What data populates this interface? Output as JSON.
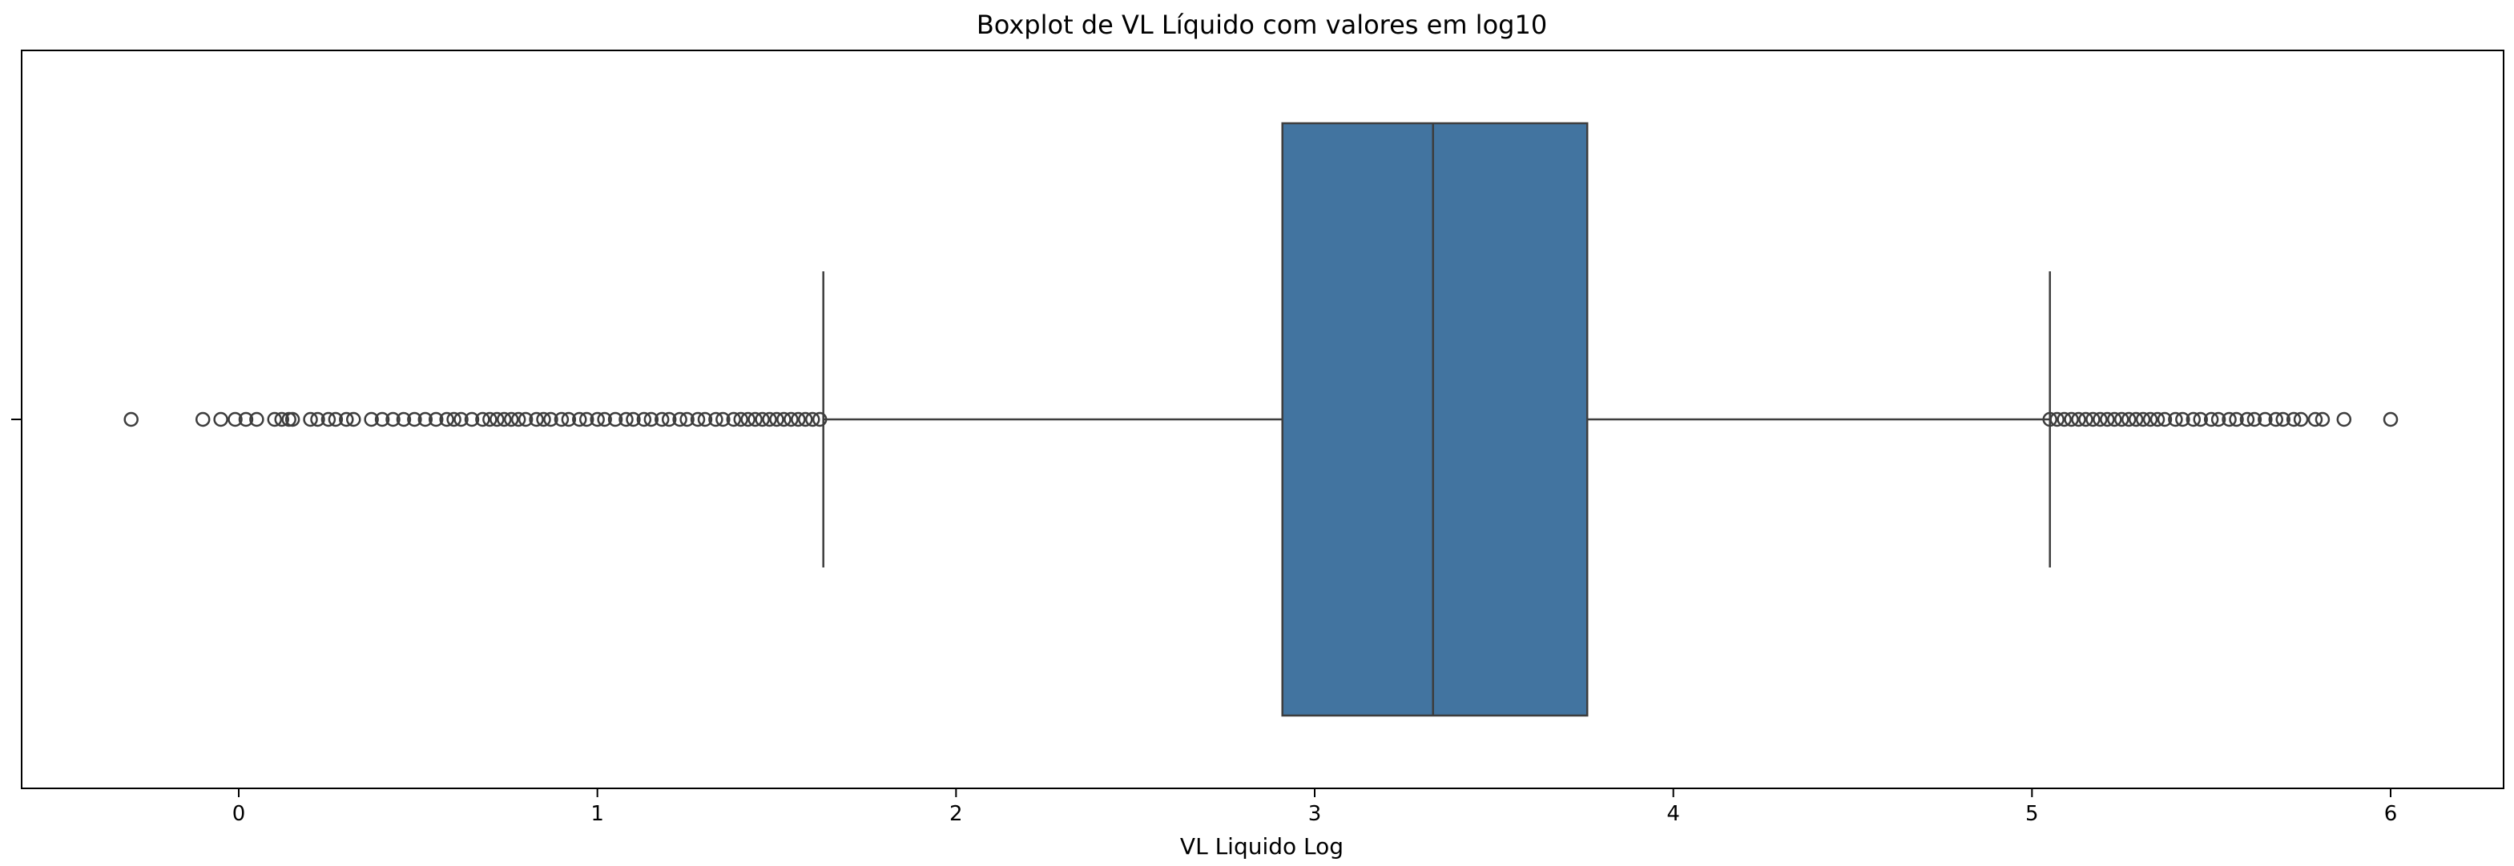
{
  "chart_data": {
    "type": "box",
    "orientation": "horizontal",
    "title": "Boxplot de VL Líquido com valores em log10",
    "xlabel": "VL Liquido Log",
    "ylabel": "",
    "xlim": [
      -0.61,
      6.32
    ],
    "xticks": [
      0,
      1,
      2,
      3,
      4,
      5,
      6
    ],
    "grid": false,
    "box_color": "#4274a0",
    "line_color": "#3d3d3d",
    "box": {
      "whisker_low": 1.63,
      "q1": 2.91,
      "median": 3.33,
      "q3": 3.76,
      "whisker_high": 5.05
    },
    "outliers_low": [
      -0.3,
      -0.1,
      -0.05,
      -0.01,
      0.02,
      0.05,
      0.1,
      0.12,
      0.14,
      0.15,
      0.2,
      0.22,
      0.25,
      0.27,
      0.3,
      0.32,
      0.37,
      0.4,
      0.43,
      0.46,
      0.49,
      0.52,
      0.55,
      0.58,
      0.6,
      0.62,
      0.65,
      0.68,
      0.7,
      0.72,
      0.74,
      0.76,
      0.78,
      0.8,
      0.83,
      0.85,
      0.87,
      0.9,
      0.92,
      0.95,
      0.97,
      1.0,
      1.02,
      1.05,
      1.08,
      1.1,
      1.13,
      1.15,
      1.18,
      1.2,
      1.23,
      1.25,
      1.28,
      1.3,
      1.33,
      1.35,
      1.38,
      1.4,
      1.42,
      1.44,
      1.46,
      1.48,
      1.5,
      1.52,
      1.54,
      1.56,
      1.58,
      1.6,
      1.62
    ],
    "outliers_high": [
      5.05,
      5.07,
      5.09,
      5.11,
      5.13,
      5.15,
      5.17,
      5.19,
      5.21,
      5.23,
      5.25,
      5.27,
      5.29,
      5.31,
      5.33,
      5.35,
      5.37,
      5.4,
      5.42,
      5.45,
      5.47,
      5.5,
      5.52,
      5.55,
      5.57,
      5.6,
      5.62,
      5.65,
      5.68,
      5.7,
      5.73,
      5.75,
      5.79,
      5.81,
      5.87,
      6.0
    ]
  }
}
